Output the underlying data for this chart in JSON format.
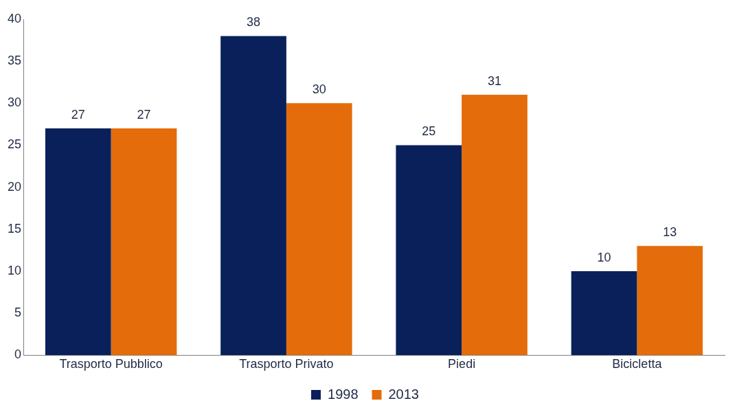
{
  "chart_data": {
    "type": "bar",
    "categories": [
      "Trasporto Pubblico",
      "Trasporto Privato",
      "Piedi",
      "Bicicletta"
    ],
    "series": [
      {
        "name": "1998",
        "color": "#0a205a",
        "values": [
          27,
          38,
          25,
          10
        ]
      },
      {
        "name": "2013",
        "color": "#e46c0a",
        "values": [
          27,
          30,
          31,
          13
        ]
      }
    ],
    "ylim": [
      0,
      40
    ],
    "yticks": [
      0,
      5,
      10,
      15,
      20,
      25,
      30,
      35,
      40
    ],
    "grid": false,
    "legend": "bottom",
    "data_labels": true
  }
}
